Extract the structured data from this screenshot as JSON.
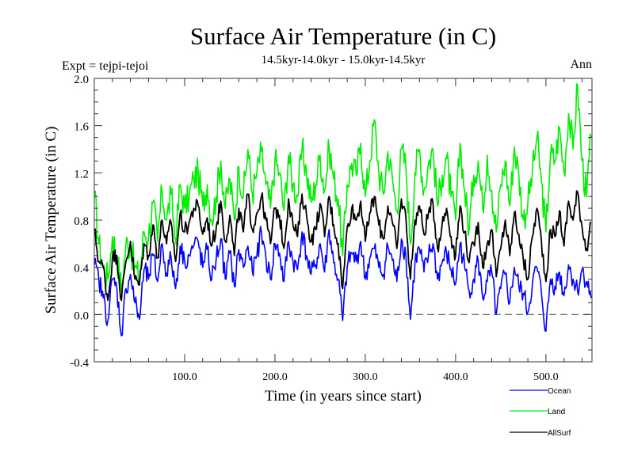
{
  "chart_data": {
    "type": "line",
    "title": "Surface Air Temperature (in C)",
    "subtitle": "14.5kyr-14.0kyr - 15.0kyr-14.5kyr",
    "left_annotation": "Expt = tejpi-tejoi",
    "right_annotation": "Ann",
    "xlabel": "Time (in years since start)",
    "ylabel": "Surface Air Temperature (in C)",
    "xlim": [
      0,
      551
    ],
    "ylim": [
      -0.4,
      2.0
    ],
    "x_major_ticks": [
      100,
      200,
      300,
      400,
      500
    ],
    "x_tick_labels": [
      "100.0",
      "200.0",
      "300.0",
      "400.0",
      "500.0"
    ],
    "x_minor_step": 20,
    "y_major_ticks": [
      -0.4,
      0.0,
      0.4,
      0.8,
      1.2,
      1.6,
      2.0
    ],
    "y_tick_labels": [
      "-0.4",
      "0.0",
      "0.4",
      "0.8",
      "1.2",
      "1.6",
      "2.0"
    ],
    "y_minor_step": 0.1,
    "reference_line": {
      "y": 0.0,
      "style": "dashed",
      "color": "#555555"
    },
    "grid": false,
    "legend_position": "bottom-right",
    "x_step": 5,
    "series": [
      {
        "name": "Ocean",
        "color": "#0000ff",
        "values": [
          0.42,
          0.3,
          0.14,
          -0.05,
          0.3,
          0.22,
          -0.18,
          0.22,
          0.34,
          0.1,
          -0.04,
          0.38,
          0.3,
          0.5,
          0.28,
          0.6,
          0.35,
          0.48,
          0.22,
          0.58,
          0.45,
          0.5,
          0.58,
          0.62,
          0.4,
          0.55,
          0.3,
          0.48,
          0.64,
          0.3,
          0.52,
          0.24,
          0.55,
          0.4,
          0.58,
          0.36,
          0.5,
          0.7,
          0.48,
          0.3,
          0.6,
          0.52,
          0.28,
          0.62,
          0.45,
          0.38,
          0.7,
          0.5,
          0.34,
          0.42,
          0.6,
          0.36,
          0.72,
          0.44,
          0.3,
          -0.05,
          0.4,
          0.52,
          0.45,
          0.62,
          0.3,
          0.48,
          0.56,
          0.4,
          0.34,
          0.58,
          0.46,
          0.28,
          0.64,
          0.5,
          -0.04,
          0.44,
          0.56,
          0.36,
          0.5,
          0.6,
          0.3,
          0.44,
          0.52,
          0.38,
          0.26,
          0.6,
          0.4,
          0.2,
          0.3,
          0.46,
          0.14,
          0.28,
          0.36,
          0.0,
          0.22,
          0.34,
          0.1,
          0.4,
          0.24,
          0.18,
          0.02,
          0.26,
          0.4,
          0.18,
          -0.14,
          0.3,
          0.24,
          0.36,
          0.16,
          0.42,
          0.3,
          0.2,
          0.38,
          0.28,
          0.14
        ]
      },
      {
        "name": "Land",
        "color": "#00ee00",
        "values": [
          1.02,
          0.6,
          0.4,
          0.3,
          0.66,
          0.5,
          0.2,
          0.6,
          0.58,
          0.4,
          0.3,
          0.7,
          0.66,
          0.95,
          0.62,
          1.05,
          0.8,
          1.02,
          0.62,
          1.1,
          0.9,
          1.0,
          1.15,
          1.2,
          0.92,
          1.1,
          0.8,
          1.0,
          1.3,
          0.9,
          1.15,
          0.8,
          1.25,
          1.0,
          1.4,
          1.02,
          1.2,
          1.38,
          1.1,
          0.9,
          1.3,
          1.2,
          0.88,
          1.35,
          1.1,
          1.0,
          1.4,
          1.2,
          0.95,
          1.1,
          1.35,
          1.05,
          1.42,
          1.15,
          0.98,
          0.5,
          1.1,
          1.28,
          1.18,
          1.45,
          1.0,
          1.3,
          1.65,
          1.2,
          1.02,
          1.38,
          1.15,
          0.88,
          1.4,
          1.25,
          0.6,
          1.2,
          1.4,
          1.05,
          1.28,
          1.4,
          0.92,
          1.18,
          1.32,
          1.0,
          0.8,
          1.45,
          1.05,
          0.72,
          1.18,
          1.3,
          0.9,
          1.35,
          1.05,
          0.7,
          1.1,
          1.3,
          0.92,
          1.42,
          1.18,
          0.8,
          0.95,
          1.2,
          1.5,
          1.12,
          0.7,
          1.35,
          1.3,
          1.58,
          1.2,
          1.7,
          1.4,
          1.95,
          1.3,
          1.0,
          1.5
        ]
      },
      {
        "name": "AllSurf",
        "color": "#000000",
        "values": [
          0.72,
          0.45,
          0.4,
          0.12,
          0.48,
          0.5,
          0.12,
          0.45,
          0.62,
          0.3,
          0.25,
          0.6,
          0.5,
          0.76,
          0.48,
          0.8,
          0.6,
          0.78,
          0.45,
          0.86,
          0.7,
          0.78,
          0.9,
          0.92,
          0.68,
          0.82,
          0.58,
          0.74,
          0.96,
          0.62,
          0.84,
          0.5,
          0.9,
          0.7,
          1.02,
          0.72,
          0.86,
          1.0,
          0.8,
          0.6,
          0.9,
          0.84,
          0.56,
          0.98,
          0.76,
          0.66,
          1.02,
          0.84,
          0.62,
          0.72,
          0.94,
          0.66,
          1.0,
          0.76,
          0.6,
          0.22,
          0.74,
          0.9,
          0.8,
          0.96,
          0.62,
          0.86,
          1.0,
          0.76,
          0.64,
          0.92,
          0.78,
          0.56,
          0.98,
          0.82,
          0.3,
          0.8,
          0.92,
          0.68,
          0.86,
          0.94,
          0.56,
          0.76,
          0.9,
          0.66,
          0.5,
          0.92,
          0.7,
          0.44,
          0.6,
          0.78,
          0.4,
          0.6,
          0.72,
          0.32,
          0.56,
          0.8,
          0.5,
          0.86,
          0.68,
          0.46,
          0.3,
          0.66,
          0.9,
          0.62,
          0.28,
          0.72,
          0.66,
          0.88,
          0.58,
          0.96,
          0.8,
          1.04,
          0.74,
          0.56,
          0.78
        ]
      }
    ]
  }
}
